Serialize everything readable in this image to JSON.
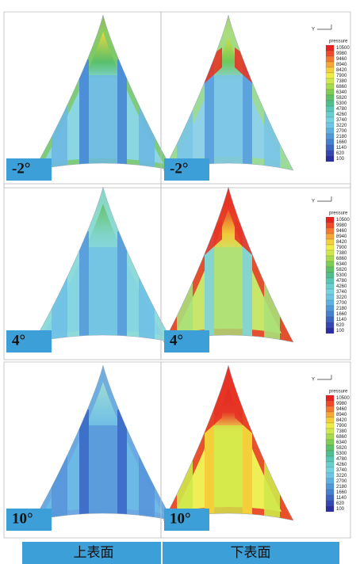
{
  "column_labels": [
    "上表面",
    "下表面"
  ],
  "rows": [
    {
      "angle": "-2°"
    },
    {
      "angle": "4°"
    },
    {
      "angle": "10°"
    }
  ],
  "legend": {
    "axis": "Y",
    "title": "pressure",
    "levels": [
      10500,
      9980,
      9460,
      8940,
      8420,
      7900,
      7380,
      6860,
      6340,
      5820,
      5300,
      4780,
      4260,
      3740,
      3220,
      2700,
      2180,
      1660,
      1140,
      620,
      100
    ]
  }
}
